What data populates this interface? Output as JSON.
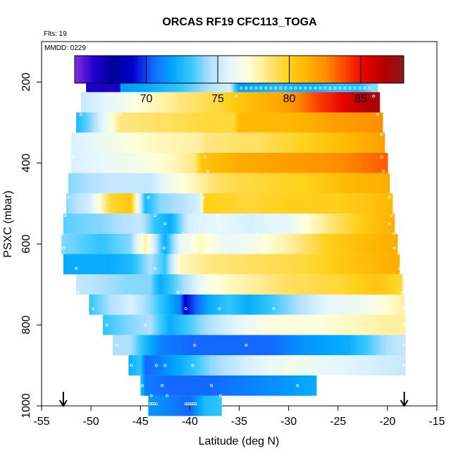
{
  "chart_data": {
    "type": "heatmap",
    "title": "ORCAS RF19 CFC113_TOGA",
    "flights_label": "Flts: 19",
    "date_label": "MMDD: 0229",
    "xlabel": "Latitude (deg N)",
    "ylabel": "PSXC (mbar)",
    "xlim": [
      -55,
      -15
    ],
    "ylim": [
      1000,
      100
    ],
    "x_ticks": [
      -55,
      -50,
      -45,
      -40,
      -35,
      -30,
      -25,
      -20,
      -15
    ],
    "y_ticks": [
      200,
      400,
      600,
      800,
      1000
    ],
    "colorbar": {
      "min": 65,
      "max": 88,
      "ticks": [
        70,
        75,
        80,
        85
      ],
      "colors": [
        "#8a2be2",
        "#1e00cc",
        "#00009a",
        "#0000cc",
        "#1464ff",
        "#00a6ff",
        "#36c8ff",
        "#b0e0ff",
        "#e4f6ff",
        "#ffffd8",
        "#ffe680",
        "#ffd21e",
        "#ffb400",
        "#ff8c00",
        "#ff4000",
        "#e60000",
        "#b40000",
        "#8b1a1a"
      ]
    },
    "markers": [
      {
        "name": "start-arrow",
        "lat": -52.8
      },
      {
        "name": "end-arrow",
        "lat": -18.3
      }
    ],
    "bands": [
      {
        "p": 200,
        "lat_min": -50.5,
        "lat_max": -21.0,
        "stops": [
          [
            -50.5,
            66.5
          ],
          [
            -47.2,
            66.5
          ],
          [
            -47,
            71.5
          ],
          [
            -44,
            72
          ],
          [
            -41,
            73
          ],
          [
            -38,
            74.5
          ],
          [
            -36,
            75.5
          ],
          [
            -35,
            71.5
          ],
          [
            -31,
            72.5
          ],
          [
            -28,
            72
          ],
          [
            -25,
            73
          ],
          [
            -23,
            72.5
          ],
          [
            -21.5,
            74
          ]
        ]
      },
      {
        "p": 250,
        "lat_min": -51.0,
        "lat_max": -20.8,
        "stops": [
          [
            -51,
            75
          ],
          [
            -48,
            76
          ],
          [
            -44,
            77.5
          ],
          [
            -41,
            78.5
          ],
          [
            -37,
            79.5
          ],
          [
            -35,
            80.5
          ],
          [
            -30,
            82
          ],
          [
            -27,
            84
          ],
          [
            -24,
            85.5
          ],
          [
            -21.5,
            87
          ]
        ]
      },
      {
        "p": 300,
        "lat_min": -51.5,
        "lat_max": -20.5,
        "stops": [
          [
            -51.5,
            72.5
          ],
          [
            -50,
            74
          ],
          [
            -47,
            78.5
          ],
          [
            -42,
            79
          ],
          [
            -38,
            79.5
          ],
          [
            -35.5,
            79.5
          ],
          [
            -35,
            81
          ],
          [
            -30,
            81
          ],
          [
            -25,
            82
          ],
          [
            -20.5,
            82.5
          ]
        ]
      },
      {
        "p": 350,
        "lat_min": -52.0,
        "lat_max": -20.3,
        "stops": [
          [
            -52,
            75.5
          ],
          [
            -48,
            76.5
          ],
          [
            -44,
            77.5
          ],
          [
            -39,
            78
          ],
          [
            -38.5,
            78.5
          ],
          [
            -33,
            79
          ],
          [
            -28,
            80
          ],
          [
            -24,
            81
          ],
          [
            -20.3,
            82
          ]
        ]
      },
      {
        "p": 400,
        "lat_min": -52.0,
        "lat_max": -20.0,
        "stops": [
          [
            -52,
            75.5
          ],
          [
            -46,
            76.5
          ],
          [
            -42,
            77.5
          ],
          [
            -39.5,
            78.5
          ],
          [
            -38.8,
            80.5
          ],
          [
            -35,
            81.5
          ],
          [
            -30,
            82
          ],
          [
            -25,
            82.5
          ],
          [
            -20,
            83.5
          ]
        ]
      },
      {
        "p": 450,
        "lat_min": -52.3,
        "lat_max": -19.8,
        "stops": [
          [
            -52.3,
            74
          ],
          [
            -48,
            75
          ],
          [
            -44,
            75
          ],
          [
            -42,
            76.5
          ],
          [
            -40,
            77.5
          ],
          [
            -37,
            79
          ],
          [
            -33,
            79.5
          ],
          [
            -28,
            80
          ],
          [
            -24,
            81
          ],
          [
            -19.8,
            81.5
          ]
        ]
      },
      {
        "p": 500,
        "lat_min": -52.5,
        "lat_max": -19.5,
        "stops": [
          [
            -52.5,
            74
          ],
          [
            -50,
            75.5
          ],
          [
            -48,
            79.5
          ],
          [
            -46,
            80.5
          ],
          [
            -44.5,
            72.5
          ],
          [
            -43,
            74
          ],
          [
            -41,
            74.5
          ],
          [
            -39,
            75.5
          ],
          [
            -38.5,
            80
          ],
          [
            -34,
            79.5
          ],
          [
            -30,
            80
          ],
          [
            -25,
            80
          ],
          [
            -19.5,
            81
          ]
        ]
      },
      {
        "p": 550,
        "lat_min": -52.8,
        "lat_max": -19.3,
        "stops": [
          [
            -52.8,
            73.5
          ],
          [
            -49,
            74
          ],
          [
            -45,
            75
          ],
          [
            -43.5,
            73
          ],
          [
            -42,
            72
          ],
          [
            -40,
            75.5
          ],
          [
            -37,
            76
          ],
          [
            -34,
            75.5
          ],
          [
            -30,
            76
          ],
          [
            -26,
            78.5
          ],
          [
            -23,
            80
          ],
          [
            -19.3,
            81.5
          ]
        ]
      },
      {
        "p": 600,
        "lat_min": -53.0,
        "lat_max": -19.0,
        "stops": [
          [
            -53,
            74
          ],
          [
            -49,
            73
          ],
          [
            -46,
            74
          ],
          [
            -44.5,
            78
          ],
          [
            -42.5,
            72
          ],
          [
            -41,
            76
          ],
          [
            -39,
            77.5
          ],
          [
            -36,
            76
          ],
          [
            -34,
            76.5
          ],
          [
            -30,
            78
          ],
          [
            -26,
            80
          ],
          [
            -22,
            81
          ],
          [
            -19,
            81.5
          ]
        ]
      },
      {
        "p": 650,
        "lat_min": -52.8,
        "lat_max": -18.8,
        "stops": [
          [
            -52.8,
            72
          ],
          [
            -48,
            72
          ],
          [
            -46,
            72.5
          ],
          [
            -44,
            74.5
          ],
          [
            -42.5,
            73
          ],
          [
            -41,
            77.5
          ],
          [
            -38,
            78.5
          ],
          [
            -33,
            79
          ],
          [
            -28,
            79.5
          ],
          [
            -24,
            80.5
          ],
          [
            -18.8,
            81.5
          ]
        ]
      },
      {
        "p": 700,
        "lat_min": -51.5,
        "lat_max": -18.5,
        "stops": [
          [
            -51.5,
            75
          ],
          [
            -49,
            74.5
          ],
          [
            -46,
            74
          ],
          [
            -44,
            74
          ],
          [
            -43,
            72
          ],
          [
            -41,
            74
          ],
          [
            -38,
            77
          ],
          [
            -34,
            78
          ],
          [
            -30,
            79
          ],
          [
            -25,
            79.5
          ],
          [
            -21,
            80.5
          ],
          [
            -18.5,
            79.5
          ]
        ]
      },
      {
        "p": 750,
        "lat_min": -50.2,
        "lat_max": -18.3,
        "stops": [
          [
            -50.2,
            73
          ],
          [
            -48,
            74.5
          ],
          [
            -46,
            75.5
          ],
          [
            -44,
            74
          ],
          [
            -41,
            71
          ],
          [
            -40.5,
            69
          ],
          [
            -38,
            72
          ],
          [
            -36,
            73
          ],
          [
            -34,
            72
          ],
          [
            -30,
            74
          ],
          [
            -26,
            76
          ],
          [
            -22,
            76.5
          ],
          [
            -18.3,
            78
          ]
        ]
      },
      {
        "p": 800,
        "lat_min": -48.8,
        "lat_max": -18.2,
        "stops": [
          [
            -48.8,
            73
          ],
          [
            -46,
            74
          ],
          [
            -44,
            74.5
          ],
          [
            -42,
            72
          ],
          [
            -39,
            74
          ],
          [
            -36,
            75.5
          ],
          [
            -32,
            77
          ],
          [
            -28,
            77
          ],
          [
            -24,
            77.5
          ],
          [
            -20,
            78
          ],
          [
            -18.2,
            78
          ]
        ]
      },
      {
        "p": 850,
        "lat_min": -47.8,
        "lat_max": -18.2,
        "stops": [
          [
            -47.8,
            74.5
          ],
          [
            -46,
            74.5
          ],
          [
            -44.5,
            72.5
          ],
          [
            -43,
            71
          ],
          [
            -40,
            70.5
          ],
          [
            -36,
            70.5
          ],
          [
            -32,
            70.5
          ],
          [
            -28,
            71.5
          ],
          [
            -24,
            72
          ],
          [
            -20,
            74.5
          ],
          [
            -18.2,
            75
          ]
        ]
      },
      {
        "p": 900,
        "lat_min": -46.2,
        "lat_max": -18.2,
        "stops": [
          [
            -46.2,
            72
          ],
          [
            -45,
            73
          ],
          [
            -44.5,
            70.5
          ],
          [
            -43,
            71
          ],
          [
            -41,
            72
          ],
          [
            -38,
            74
          ],
          [
            -34,
            75.5
          ],
          [
            -30,
            76.5
          ],
          [
            -26,
            76
          ],
          [
            -22,
            75.5
          ],
          [
            -18.2,
            75
          ]
        ]
      },
      {
        "p": 950,
        "lat_min": -45.0,
        "lat_max": -27.2,
        "stops": [
          [
            -45,
            73
          ],
          [
            -44.5,
            71
          ],
          [
            -42,
            70.5
          ],
          [
            -38,
            70.5
          ],
          [
            -34,
            71
          ],
          [
            -30,
            71.5
          ],
          [
            -27.2,
            72
          ]
        ]
      },
      {
        "p": 1000,
        "lat_min": -44.2,
        "lat_max": -36.8,
        "stops": [
          [
            -44.2,
            71.5
          ],
          [
            -42,
            71
          ],
          [
            -40,
            70.5
          ],
          [
            -38.5,
            72.5
          ],
          [
            -36.8,
            73
          ]
        ]
      }
    ],
    "samples": [
      {
        "p": 198,
        "lats": [
          -50.2,
          -49.8,
          -49.4,
          -49.0,
          -48.6,
          -48.2,
          -47.8,
          -47.4,
          -34.8,
          -34.3,
          -33.8,
          -33.3,
          -32.8,
          -32.3,
          -31.8,
          -31.3,
          -30.8,
          -30.3,
          -29.8,
          -29.3,
          -28.8,
          -28.3,
          -27.8,
          -27.3,
          -26.8,
          -26.3,
          -25.8,
          -25.3,
          -24.8,
          -24.3,
          -23.8,
          -23.3,
          -22.8,
          -22.3
        ]
      },
      {
        "p": 215,
        "lats": [
          -34.8,
          -34.3,
          -33.8,
          -33.3,
          -32.8,
          -32.3,
          -31.8,
          -31.3,
          -30.8,
          -30.3,
          -29.8,
          -29.3,
          -28.8,
          -28.3,
          -27.8,
          -27.3,
          -26.8,
          -26.3,
          -25.8,
          -25.3,
          -24.8,
          -24.3,
          -23.8,
          -23.3,
          -22.8,
          -22.3,
          -21.8
        ]
      },
      {
        "p": 235,
        "lats": [
          -35.3,
          -21.4
        ]
      },
      {
        "p": 280,
        "lats": [
          -51.0,
          -47.0,
          -21.0
        ]
      },
      {
        "p": 330,
        "lats": [
          -51.3,
          -20.6
        ]
      },
      {
        "p": 385,
        "lats": [
          -51.8,
          -38.5,
          -20.6
        ]
      },
      {
        "p": 420,
        "lats": [
          -38.2,
          -20.4
        ]
      },
      {
        "p": 485,
        "lats": [
          -52.3,
          -44.2,
          -38.6,
          -19.8
        ]
      },
      {
        "p": 530,
        "lats": [
          -52.6,
          -43.5,
          -37.2,
          -19.6
        ]
      },
      {
        "p": 550,
        "lats": [
          -42.5,
          -36.3,
          -19.8
        ]
      },
      {
        "p": 575,
        "lats": [
          -52.9,
          -44.8,
          -40.7,
          -33.2,
          -19.4
        ]
      },
      {
        "p": 610,
        "lats": [
          -52.8,
          -42.6,
          -19.3
        ]
      },
      {
        "p": 660,
        "lats": [
          -51.5,
          -43.5,
          -18.8
        ]
      },
      {
        "p": 720,
        "lats": [
          -51.3,
          -41.2,
          -18.5
        ]
      },
      {
        "p": 760,
        "lats": [
          -49.8,
          -40.4,
          -37.0,
          -31.5,
          -18.4
        ]
      },
      {
        "p": 800,
        "lats": [
          -48.4,
          -44.5,
          -18.3
        ]
      },
      {
        "p": 850,
        "lats": [
          -47.4,
          -39.5,
          -34.3,
          -18.3
        ]
      },
      {
        "p": 900,
        "lats": [
          -45.9,
          -43.4,
          -42.5,
          -39.7,
          -18.3
        ]
      },
      {
        "p": 950,
        "lats": [
          -44.8,
          -42.8,
          -37.8,
          -29.1
        ]
      },
      {
        "p": 975,
        "lats": [
          -43.9,
          -42.3,
          -36.9
        ]
      },
      {
        "p": 995,
        "lats": [
          -44.0,
          -43.8,
          -43.6,
          -43.4,
          -40.4,
          -40.2,
          -40.0,
          -39.8,
          -39.6,
          -39.4
        ]
      }
    ]
  }
}
